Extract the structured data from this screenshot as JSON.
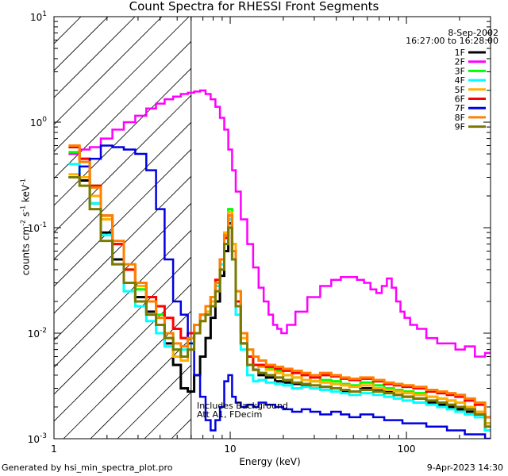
{
  "header": {
    "title": "Count Spectra for RHESSI Front Segments",
    "date": "8-Sep-2002",
    "time_range": "16:27:00 to 16:28:00"
  },
  "footer": {
    "generated_by": "Generated by hsi_min_spectra_plot.pro",
    "timestamp": "9-Apr-2023 14:30"
  },
  "annotations": {
    "line1": "Includes Background",
    "line2": "Att A1, FDecim"
  },
  "chart_data": {
    "type": "line",
    "title": "Count Spectra for RHESSI Front Segments",
    "xlabel": "Energy (keV)",
    "ylabel": "counts cm-2 s-1 keV-1",
    "xscale": "log",
    "yscale": "log",
    "xlim": [
      1,
      300
    ],
    "ylim": [
      0.001,
      10
    ],
    "grid": false,
    "legend_position": "top-right",
    "x_ticks": [
      {
        "value": 1,
        "label": "1"
      },
      {
        "value": 10,
        "label": "10"
      },
      {
        "value": 100,
        "label": "100"
      }
    ],
    "y_ticks": [
      {
        "value": 0.001,
        "base": "10",
        "exp": "-3"
      },
      {
        "value": 0.01,
        "base": "10",
        "exp": "-2"
      },
      {
        "value": 0.1,
        "base": "10",
        "exp": "-1"
      },
      {
        "value": 1,
        "base": "10",
        "exp": "0"
      },
      {
        "value": 10,
        "base": "10",
        "exp": "1"
      }
    ],
    "shaded_region": {
      "xmin": 1,
      "xmax": 6,
      "style": "diagonal-hatch"
    },
    "series": [
      {
        "name": "1F",
        "color": "#000000",
        "energies": [
          1.3,
          1.5,
          1.7,
          2,
          2.3,
          2.7,
          3.1,
          3.6,
          4,
          4.5,
          5,
          5.5,
          6,
          6.5,
          7,
          7.5,
          8,
          8.5,
          9,
          9.5,
          10,
          10.5,
          11,
          12,
          13,
          14,
          15,
          17,
          19,
          21,
          24,
          27,
          30,
          35,
          40,
          45,
          50,
          60,
          70,
          80,
          90,
          100,
          120,
          140,
          160,
          180,
          200,
          230,
          260,
          300
        ],
        "values": [
          0.3,
          0.28,
          0.17,
          0.09,
          0.05,
          0.03,
          0.022,
          0.016,
          0.012,
          0.008,
          0.005,
          0.003,
          0.0028,
          0.004,
          0.006,
          0.009,
          0.014,
          0.02,
          0.035,
          0.06,
          0.11,
          0.06,
          0.02,
          0.008,
          0.005,
          0.0045,
          0.004,
          0.0038,
          0.0035,
          0.0034,
          0.0033,
          0.0032,
          0.003,
          0.0031,
          0.003,
          0.0028,
          0.0028,
          0.003,
          0.0029,
          0.0028,
          0.0026,
          0.0025,
          0.0024,
          0.0022,
          0.0021,
          0.002,
          0.0019,
          0.0018,
          0.0017,
          0.0012
        ]
      },
      {
        "name": "2F",
        "color": "#ff00ff",
        "energies": [
          1.3,
          1.5,
          1.7,
          2,
          2.3,
          2.7,
          3.1,
          3.6,
          4,
          4.5,
          5,
          5.5,
          6,
          6.5,
          7,
          7.5,
          8,
          8.5,
          9,
          9.5,
          10,
          10.5,
          11,
          12,
          13,
          14,
          15,
          16,
          17,
          18,
          19,
          20,
          22,
          25,
          30,
          35,
          40,
          45,
          50,
          55,
          60,
          65,
          70,
          75,
          80,
          85,
          90,
          95,
          100,
          110,
          120,
          140,
          160,
          180,
          200,
          230,
          260,
          300
        ],
        "values": [
          0.5,
          0.55,
          0.58,
          0.7,
          0.85,
          1.0,
          1.15,
          1.35,
          1.5,
          1.65,
          1.75,
          1.85,
          1.9,
          1.95,
          2.0,
          1.85,
          1.65,
          1.4,
          1.1,
          0.85,
          0.55,
          0.35,
          0.22,
          0.12,
          0.07,
          0.042,
          0.027,
          0.02,
          0.015,
          0.012,
          0.011,
          0.01,
          0.012,
          0.016,
          0.022,
          0.028,
          0.032,
          0.034,
          0.034,
          0.032,
          0.03,
          0.026,
          0.024,
          0.028,
          0.033,
          0.027,
          0.02,
          0.016,
          0.014,
          0.012,
          0.011,
          0.009,
          0.008,
          0.008,
          0.007,
          0.0075,
          0.006,
          0.0065
        ]
      },
      {
        "name": "3F",
        "color": "#00ff00",
        "energies": [
          1.3,
          1.5,
          1.7,
          2,
          2.3,
          2.7,
          3.1,
          3.6,
          4,
          4.5,
          5,
          5.5,
          6,
          6.5,
          7,
          7.5,
          8,
          8.5,
          9,
          9.5,
          10,
          10.5,
          11,
          12,
          13,
          14,
          15,
          17,
          19,
          21,
          24,
          27,
          30,
          35,
          40,
          45,
          50,
          60,
          70,
          80,
          90,
          100,
          120,
          140,
          160,
          180,
          200,
          230,
          260,
          300
        ],
        "values": [
          0.52,
          0.45,
          0.25,
          0.13,
          0.07,
          0.04,
          0.026,
          0.02,
          0.015,
          0.01,
          0.007,
          0.006,
          0.008,
          0.012,
          0.015,
          0.018,
          0.022,
          0.03,
          0.05,
          0.08,
          0.15,
          0.07,
          0.025,
          0.01,
          0.006,
          0.005,
          0.0048,
          0.0046,
          0.0044,
          0.004,
          0.0038,
          0.0036,
          0.0035,
          0.0036,
          0.0035,
          0.0033,
          0.0032,
          0.0034,
          0.0032,
          0.003,
          0.0029,
          0.0028,
          0.0027,
          0.0025,
          0.0024,
          0.0023,
          0.0022,
          0.002,
          0.0018,
          0.0014
        ]
      },
      {
        "name": "4F",
        "color": "#00ffff",
        "energies": [
          1.3,
          1.5,
          1.7,
          2,
          2.3,
          2.7,
          3.1,
          3.6,
          4,
          4.5,
          5,
          5.5,
          6,
          6.5,
          7,
          7.5,
          8,
          8.5,
          9,
          9.5,
          10,
          10.5,
          11,
          12,
          13,
          14,
          15,
          17,
          19,
          21,
          24,
          27,
          30,
          35,
          40,
          45,
          50,
          60,
          70,
          80,
          90,
          100,
          120,
          140,
          160,
          180,
          200,
          230,
          260,
          300
        ],
        "values": [
          0.4,
          0.3,
          0.17,
          0.085,
          0.045,
          0.025,
          0.018,
          0.013,
          0.01,
          0.0075,
          0.006,
          0.007,
          0.009,
          0.012,
          0.015,
          0.016,
          0.02,
          0.028,
          0.045,
          0.07,
          0.12,
          0.05,
          0.015,
          0.007,
          0.004,
          0.0035,
          0.0036,
          0.0034,
          0.0033,
          0.0032,
          0.003,
          0.0031,
          0.003,
          0.0029,
          0.0028,
          0.0027,
          0.0026,
          0.0027,
          0.0026,
          0.0025,
          0.0024,
          0.0023,
          0.0022,
          0.0021,
          0.002,
          0.0019,
          0.0018,
          0.0017,
          0.0016,
          0.0012
        ]
      },
      {
        "name": "5F",
        "color": "#ffb000",
        "energies": [
          1.3,
          1.5,
          1.7,
          2,
          2.3,
          2.7,
          3.1,
          3.6,
          4,
          4.5,
          5,
          5.5,
          6,
          6.5,
          7,
          7.5,
          8,
          8.5,
          9,
          9.5,
          10,
          10.5,
          11,
          12,
          13,
          14,
          15,
          17,
          19,
          21,
          24,
          27,
          30,
          35,
          40,
          45,
          50,
          60,
          70,
          80,
          90,
          100,
          120,
          140,
          160,
          180,
          200,
          230,
          260,
          300
        ],
        "values": [
          0.32,
          0.3,
          0.2,
          0.12,
          0.07,
          0.04,
          0.028,
          0.02,
          0.014,
          0.009,
          0.006,
          0.0055,
          0.007,
          0.01,
          0.013,
          0.016,
          0.02,
          0.03,
          0.05,
          0.09,
          0.14,
          0.07,
          0.02,
          0.009,
          0.006,
          0.005,
          0.0048,
          0.0045,
          0.0042,
          0.004,
          0.0038,
          0.0036,
          0.0035,
          0.0034,
          0.0033,
          0.0032,
          0.0031,
          0.0032,
          0.003,
          0.0029,
          0.0028,
          0.0027,
          0.0026,
          0.0025,
          0.0024,
          0.0023,
          0.0022,
          0.002,
          0.0018,
          0.0014
        ]
      },
      {
        "name": "6F",
        "color": "#ff0000",
        "energies": [
          1.3,
          1.5,
          1.7,
          2,
          2.3,
          2.7,
          3.1,
          3.6,
          4,
          4.5,
          5,
          5.5,
          6,
          6.5,
          7,
          7.5,
          8,
          8.5,
          9,
          9.5,
          10,
          10.5,
          11,
          12,
          13,
          14,
          15,
          17,
          19,
          21,
          24,
          27,
          30,
          35,
          40,
          45,
          50,
          60,
          70,
          80,
          90,
          100,
          120,
          140,
          160,
          180,
          200,
          230,
          260,
          300
        ],
        "values": [
          0.58,
          0.45,
          0.25,
          0.13,
          0.07,
          0.04,
          0.03,
          0.022,
          0.018,
          0.014,
          0.011,
          0.009,
          0.01,
          0.012,
          0.015,
          0.018,
          0.022,
          0.032,
          0.05,
          0.08,
          0.13,
          0.06,
          0.02,
          0.01,
          0.006,
          0.005,
          0.005,
          0.0048,
          0.0046,
          0.0044,
          0.0042,
          0.004,
          0.0038,
          0.004,
          0.0039,
          0.0037,
          0.0036,
          0.0037,
          0.0035,
          0.0033,
          0.0032,
          0.0031,
          0.003,
          0.0028,
          0.0027,
          0.0026,
          0.0025,
          0.0023,
          0.0021,
          0.0016
        ]
      },
      {
        "name": "7F",
        "color": "#0000e0",
        "energies": [
          1.3,
          1.5,
          1.7,
          2,
          2.3,
          2.7,
          3.1,
          3.6,
          4,
          4.5,
          5,
          5.5,
          6,
          6.5,
          7,
          7.5,
          8,
          8.5,
          9,
          9.5,
          10,
          10.5,
          11,
          12,
          13,
          14,
          15,
          17,
          19,
          21,
          24,
          27,
          30,
          35,
          40,
          45,
          50,
          60,
          70,
          80,
          90,
          100,
          120,
          140,
          160,
          180,
          200,
          230,
          260,
          300
        ],
        "values": [
          0.3,
          0.38,
          0.45,
          0.6,
          0.58,
          0.55,
          0.5,
          0.35,
          0.15,
          0.05,
          0.02,
          0.015,
          0.008,
          0.004,
          0.0025,
          0.0015,
          0.0012,
          0.0015,
          0.002,
          0.0035,
          0.004,
          0.0025,
          0.0022,
          0.002,
          0.0021,
          0.002,
          0.0022,
          0.0021,
          0.002,
          0.0019,
          0.0018,
          0.0019,
          0.0018,
          0.0017,
          0.0018,
          0.0017,
          0.0016,
          0.0017,
          0.0016,
          0.0015,
          0.0015,
          0.0014,
          0.0014,
          0.0013,
          0.0013,
          0.0012,
          0.0012,
          0.0011,
          0.0011,
          0.001
        ]
      },
      {
        "name": "8F",
        "color": "#ff8000",
        "energies": [
          1.3,
          1.5,
          1.7,
          2,
          2.3,
          2.7,
          3.1,
          3.6,
          4,
          4.5,
          5,
          5.5,
          6,
          6.5,
          7,
          7.5,
          8,
          8.5,
          9,
          9.5,
          10,
          10.5,
          11,
          12,
          13,
          14,
          15,
          17,
          19,
          21,
          24,
          27,
          30,
          35,
          40,
          45,
          50,
          60,
          70,
          80,
          90,
          100,
          120,
          140,
          160,
          180,
          200,
          230,
          260,
          300
        ],
        "values": [
          0.6,
          0.42,
          0.24,
          0.13,
          0.075,
          0.045,
          0.03,
          0.02,
          0.014,
          0.01,
          0.008,
          0.0075,
          0.009,
          0.012,
          0.015,
          0.018,
          0.022,
          0.03,
          0.05,
          0.085,
          0.13,
          0.06,
          0.025,
          0.01,
          0.007,
          0.006,
          0.0055,
          0.005,
          0.0048,
          0.0046,
          0.0044,
          0.0042,
          0.004,
          0.0042,
          0.004,
          0.0038,
          0.0037,
          0.0038,
          0.0036,
          0.0034,
          0.0033,
          0.0032,
          0.0031,
          0.0029,
          0.0028,
          0.0027,
          0.0026,
          0.0024,
          0.0022,
          0.0016
        ]
      },
      {
        "name": "9F",
        "color": "#7a7a00",
        "energies": [
          1.3,
          1.5,
          1.7,
          2,
          2.3,
          2.7,
          3.1,
          3.6,
          4,
          4.5,
          5,
          5.5,
          6,
          6.5,
          7,
          7.5,
          8,
          8.5,
          9,
          9.5,
          10,
          10.5,
          11,
          12,
          13,
          14,
          15,
          17,
          19,
          21,
          24,
          27,
          30,
          35,
          40,
          45,
          50,
          60,
          70,
          80,
          90,
          100,
          120,
          140,
          160,
          180,
          200,
          230,
          260,
          300
        ],
        "values": [
          0.3,
          0.25,
          0.15,
          0.075,
          0.045,
          0.03,
          0.02,
          0.015,
          0.012,
          0.009,
          0.007,
          0.006,
          0.007,
          0.01,
          0.013,
          0.015,
          0.018,
          0.025,
          0.04,
          0.07,
          0.1,
          0.05,
          0.018,
          0.008,
          0.005,
          0.0045,
          0.0042,
          0.004,
          0.0038,
          0.0036,
          0.0034,
          0.0033,
          0.0032,
          0.0031,
          0.003,
          0.0029,
          0.0028,
          0.0029,
          0.0028,
          0.0027,
          0.0026,
          0.0025,
          0.0024,
          0.0023,
          0.0022,
          0.0021,
          0.002,
          0.0019,
          0.0017,
          0.0013
        ]
      }
    ]
  }
}
